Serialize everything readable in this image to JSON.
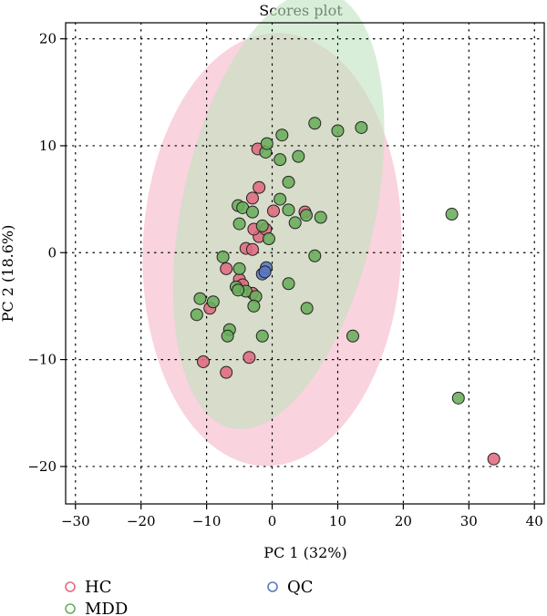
{
  "chart_data": {
    "type": "scatter",
    "title": "Scores plot",
    "xlabel": "PC 1 (32%)",
    "ylabel": "PC 2 (18.6%)",
    "xlim": [
      -31.5,
      41.5
    ],
    "ylim": [
      -23.5,
      21.5
    ],
    "xticks": [
      -30,
      -20,
      -10,
      0,
      10,
      20,
      30,
      40
    ],
    "yticks": [
      -20,
      -10,
      0,
      10,
      20
    ],
    "xtick_labels": [
      "−30",
      "−20",
      "−10",
      "0",
      "10",
      "20",
      "30",
      "40"
    ],
    "ytick_labels": [
      "−20",
      "−10",
      "0",
      "10",
      "20"
    ],
    "grid": "dotted",
    "legend_position": "bottom",
    "colors": {
      "HC": "#e06b80",
      "MDD": "#6aad5a",
      "QC": "#5a78c0",
      "HC_ellipse": "#f5b6c6",
      "MDD_ellipse": "#bfe3bf"
    },
    "ellipses": [
      {
        "group": "HC",
        "center": [
          0,
          0.3
        ],
        "semi_axes": [
          20.5,
          19.5
        ],
        "angle_deg": 60
      },
      {
        "group": "MDD",
        "center": [
          1,
          4
        ],
        "semi_axes": [
          22,
          14
        ],
        "angle_deg": 62
      }
    ],
    "series": [
      {
        "name": "HC",
        "points": [
          [
            -10.5,
            -10.2
          ],
          [
            -7,
            -11.2
          ],
          [
            -3.5,
            -9.8
          ],
          [
            -7,
            -1.5
          ],
          [
            -5,
            -2.5
          ],
          [
            -4,
            0.4
          ],
          [
            -3,
            0.3
          ],
          [
            -4.5,
            -3
          ],
          [
            -3,
            -3.8
          ],
          [
            -2,
            1.5
          ],
          [
            -1,
            2.2
          ],
          [
            0.2,
            3.9
          ],
          [
            -2.2,
            9.7
          ],
          [
            -2,
            6.1
          ],
          [
            -3,
            5.1
          ],
          [
            -2.8,
            2.2
          ],
          [
            -9.5,
            -5.2
          ],
          [
            5,
            3.8
          ],
          [
            33.8,
            -19.3
          ]
        ]
      },
      {
        "name": "MDD",
        "points": [
          [
            -11.5,
            -5.8
          ],
          [
            -11,
            -4.3
          ],
          [
            -9,
            -4.6
          ],
          [
            -7.5,
            -0.4
          ],
          [
            -6.5,
            -7.2
          ],
          [
            -6.8,
            -7.8
          ],
          [
            -5.5,
            -3.2
          ],
          [
            -5,
            -1.5
          ],
          [
            -5,
            2.7
          ],
          [
            -5.2,
            4.4
          ],
          [
            -4.5,
            4.2
          ],
          [
            -4,
            -3.6
          ],
          [
            -2.5,
            -4.1
          ],
          [
            -2.8,
            -5
          ],
          [
            -1.5,
            -7.8
          ],
          [
            -3,
            3.8
          ],
          [
            -1.5,
            2.5
          ],
          [
            -0.5,
            1.3
          ],
          [
            -1,
            9.4
          ],
          [
            -0.8,
            10.2
          ],
          [
            1.5,
            11
          ],
          [
            1.2,
            8.7
          ],
          [
            1.2,
            5
          ],
          [
            2.5,
            4
          ],
          [
            3.5,
            2.8
          ],
          [
            2.5,
            6.6
          ],
          [
            4,
            9
          ],
          [
            2.5,
            -2.9
          ],
          [
            5.2,
            3.5
          ],
          [
            7.4,
            3.3
          ],
          [
            6.5,
            -0.3
          ],
          [
            5.3,
            -5.2
          ],
          [
            6.5,
            12.1
          ],
          [
            10,
            11.4
          ],
          [
            13.6,
            11.7
          ],
          [
            12.3,
            -7.8
          ],
          [
            27.4,
            3.6
          ],
          [
            28.4,
            -13.6
          ],
          [
            -5.2,
            -3.5
          ]
        ]
      },
      {
        "name": "QC",
        "points": [
          [
            -1.5,
            -2
          ],
          [
            -0.9,
            -1.4
          ],
          [
            -1.1,
            -1.8
          ]
        ]
      }
    ]
  }
}
